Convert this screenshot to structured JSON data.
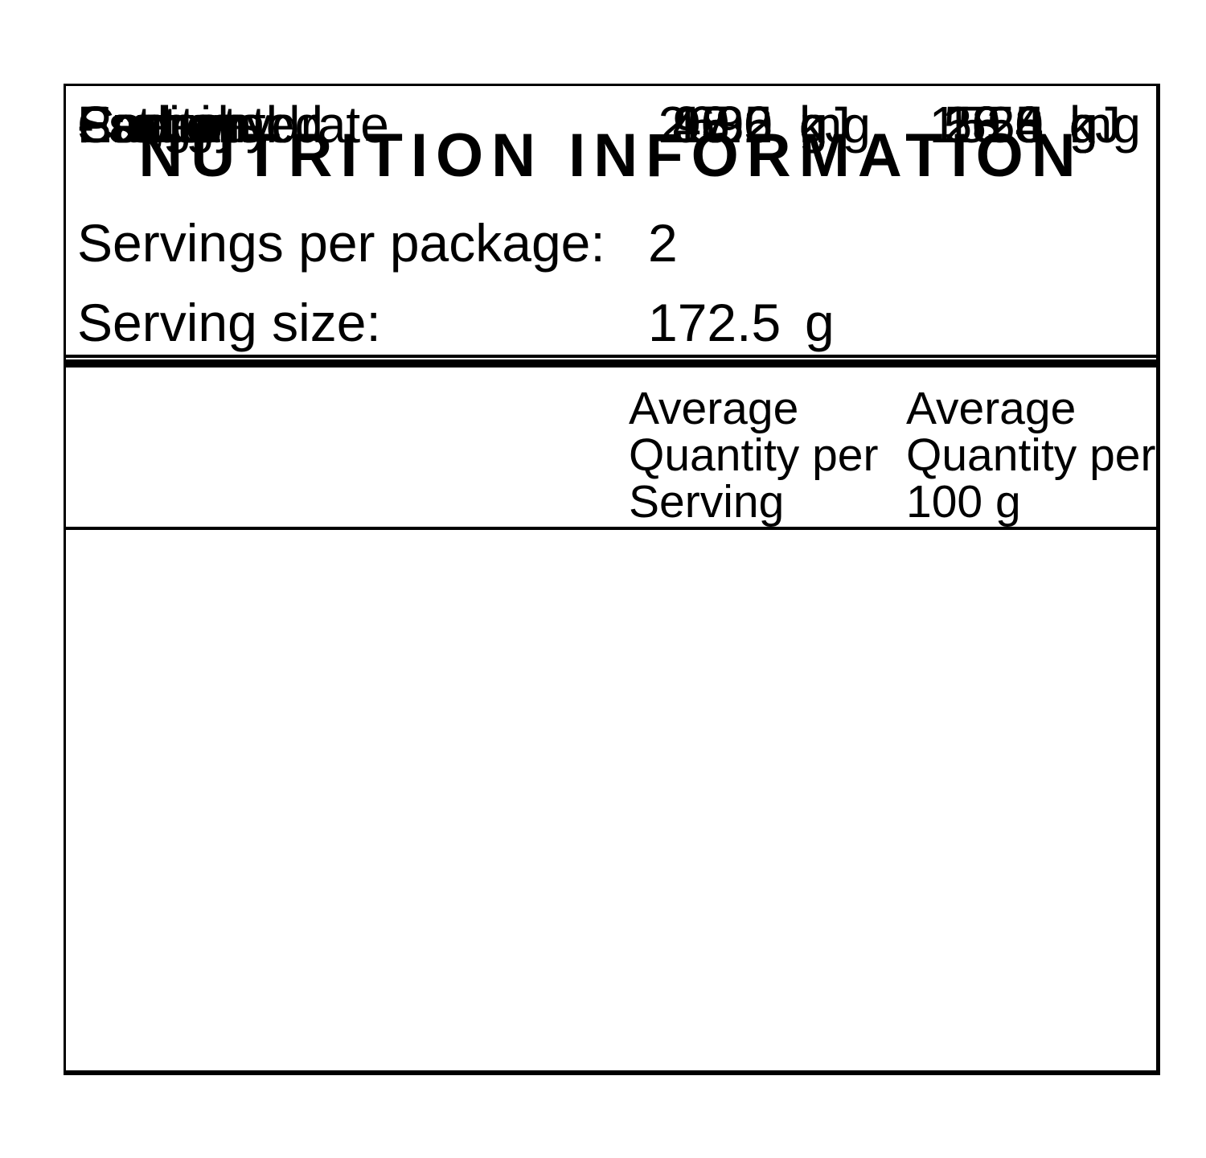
{
  "table": {
    "title": "NUTRITION INFORMATION",
    "servings_per_package": {
      "label": "Servings per package:",
      "value": "2"
    },
    "serving_size": {
      "label": "Serving size:",
      "value": "172.5",
      "unit": "g"
    },
    "columns": {
      "per_serving": "Average Quantity per Serving",
      "per_100g": "Average Quantity per 100 g"
    },
    "rows": [
      {
        "label": "Energy",
        "per_serving": "2630",
        "per_serving_unit": "kJ",
        "per_100g": "1520",
        "per_100g_unit": "kJ"
      },
      {
        "label": "Protein",
        "per_serving": "18.2",
        "per_serving_unit": "g",
        "per_100g": "10.6",
        "per_100g_unit": "g"
      },
      {
        "label": "Fat, total",
        "per_serving": "15.2",
        "per_serving_unit": "g",
        "per_100g": "8.8",
        "per_100g_unit": "g"
      },
      {
        "label": "- saturated",
        "per_serving": "5.6",
        "per_serving_unit": "g",
        "per_100g": "3.3",
        "per_100g_unit": "g"
      },
      {
        "label": "Carbohydrate",
        "per_serving": "97.2",
        "per_serving_unit": "g",
        "per_100g": "56.4",
        "per_100g_unit": "g"
      },
      {
        "label": "- sugars",
        "per_serving": "40.5",
        "per_serving_unit": "g",
        "per_100g": "23.5",
        "per_100g_unit": "g"
      },
      {
        "label": "Sodium",
        "per_serving": "95",
        "per_serving_unit": "mg",
        "per_100g": "55",
        "per_100g_unit": "mg"
      }
    ],
    "colors": {
      "text": "#000000",
      "border": "#000000",
      "background": "#ffffff"
    }
  }
}
